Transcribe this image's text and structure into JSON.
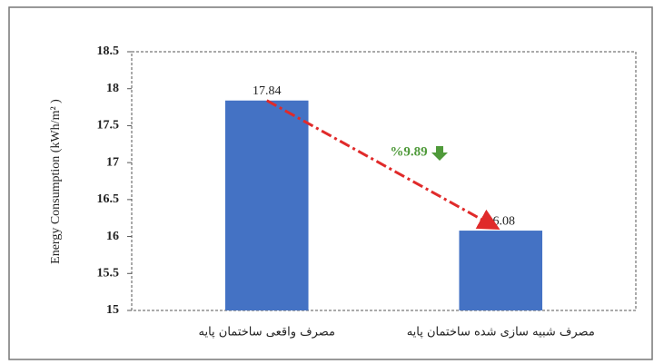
{
  "chart_data": {
    "type": "bar",
    "y_label": "Energy Consumption (kWh/m² )",
    "categories": [
      "مصرف واقعی ساختمان پایه",
      "مصرف شبیه سازی شده ساختمان پایه"
    ],
    "values": [
      17.84,
      16.08
    ],
    "color": "#4472c4",
    "ylim": [
      15,
      18.5
    ],
    "yticks": [
      15,
      15.5,
      16,
      16.5,
      17,
      17.5,
      18,
      18.5
    ],
    "grid": false,
    "annotation": "%9.89"
  }
}
